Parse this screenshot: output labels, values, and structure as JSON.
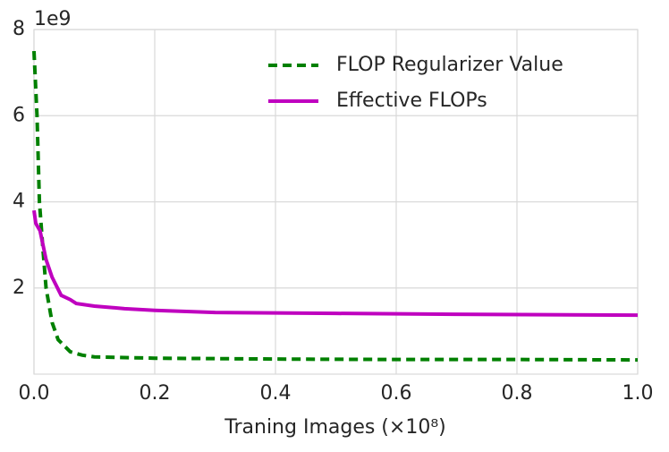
{
  "chart_data": {
    "type": "line",
    "x_label": "Traning Images (×10⁸)",
    "y_offset_label": "1e9",
    "xlim": [
      0,
      1.0
    ],
    "ylim": [
      0,
      8
    ],
    "xticks": [
      {
        "value": 0,
        "label": "0.0"
      },
      {
        "value": 0.2,
        "label": "0.2"
      },
      {
        "value": 0.4,
        "label": "0.4"
      },
      {
        "value": 0.6,
        "label": "0.6"
      },
      {
        "value": 0.8,
        "label": "0.8"
      },
      {
        "value": 1.0,
        "label": "1.0"
      }
    ],
    "yticks": [
      2,
      4,
      6,
      8
    ],
    "grid": true,
    "legend": "upper right",
    "series": [
      {
        "name": "FLOP Regularizer Value",
        "color": "#008000",
        "dashed": true,
        "x": [
          0,
          0.005,
          0.009,
          0.015,
          0.02,
          0.03,
          0.04,
          0.06,
          0.08,
          0.1,
          0.2,
          0.4,
          0.6,
          0.8,
          1.0
        ],
        "values": [
          7.5,
          6.0,
          4.0,
          2.87,
          2.0,
          1.2,
          0.8,
          0.52,
          0.44,
          0.4,
          0.37,
          0.35,
          0.34,
          0.34,
          0.33
        ]
      },
      {
        "name": "Effective FLOPs",
        "color": "#bf00bf",
        "dashed": false,
        "x": [
          0,
          0.003,
          0.01,
          0.02,
          0.03,
          0.045,
          0.06,
          0.07,
          0.1,
          0.15,
          0.2,
          0.3,
          0.5,
          0.7,
          1.0
        ],
        "values": [
          3.8,
          3.5,
          3.33,
          2.66,
          2.25,
          1.83,
          1.73,
          1.64,
          1.58,
          1.52,
          1.48,
          1.43,
          1.41,
          1.39,
          1.37
        ]
      }
    ]
  }
}
